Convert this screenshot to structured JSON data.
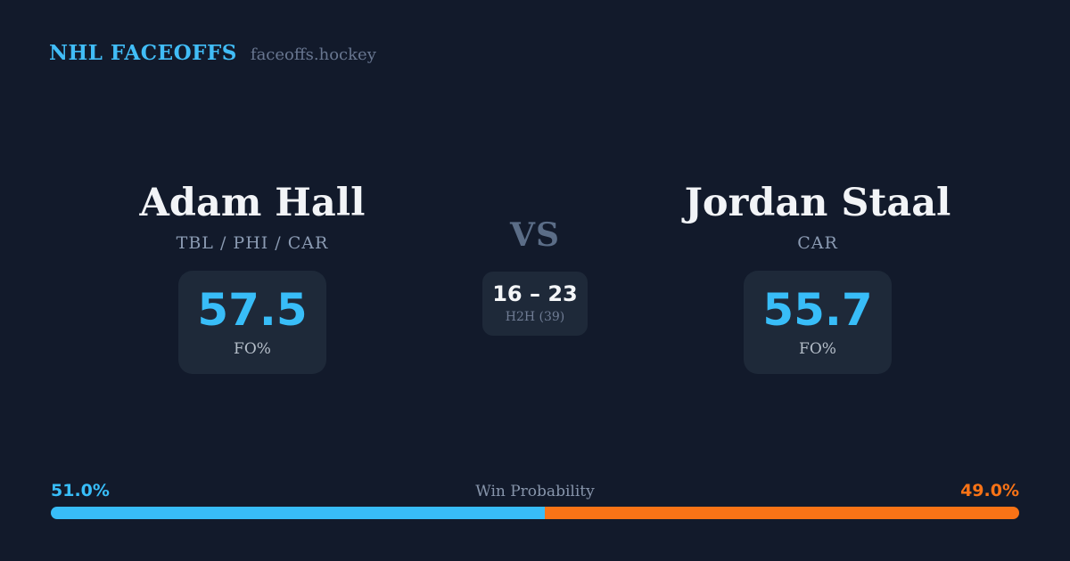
{
  "brand": {
    "title": "NHL FACEOFFS",
    "domain": "faceoffs.hockey"
  },
  "players": {
    "left": {
      "name": "Adam Hall",
      "teams": "TBL / PHI / CAR",
      "stat_value": "57.5",
      "stat_label": "FO%"
    },
    "right": {
      "name": "Jordan Staal",
      "teams": "CAR",
      "stat_value": "55.7",
      "stat_label": "FO%"
    }
  },
  "matchup": {
    "vs_label": "VS",
    "h2h_score": "16 – 23",
    "h2h_label": "H2H (39)"
  },
  "win_probability": {
    "label": "Win Probability",
    "left_pct_label": "51.0%",
    "right_pct_label": "49.0%",
    "left_value": 51.0,
    "right_value": 49.0,
    "left_color": "#38bdf8",
    "right_color": "#f97316"
  },
  "colors": {
    "background": "#121a2b",
    "panel": "#1e2939",
    "accent_blue": "#38bdf8",
    "accent_orange": "#f97316",
    "brand_blue": "#41bdf7",
    "text_primary": "#f2f4f7",
    "text_muted": "#8b9bb3"
  }
}
